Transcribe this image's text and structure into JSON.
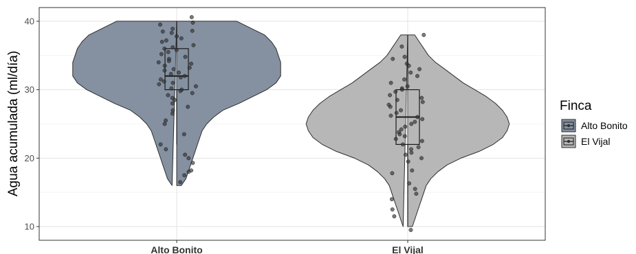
{
  "chart_data": {
    "type": "violin",
    "title": "",
    "xlabel": "",
    "ylabel": "Agua acumulada (ml/día)",
    "ylim": [
      8,
      42
    ],
    "yticks": [
      10,
      20,
      30,
      40
    ],
    "grid": true,
    "legend": {
      "title": "Finca",
      "position": "right"
    },
    "categories": [
      "Alto Bonito",
      "El Vijal"
    ],
    "colors": {
      "Alto Bonito": "#8591a1",
      "El Vijal": "#b7b7b7"
    },
    "series": [
      {
        "name": "Alto Bonito",
        "box": {
          "min": 22,
          "q1": 30,
          "median": 32,
          "q3": 36,
          "max": 40
        },
        "violin": {
          "y": [
            16,
            17,
            18,
            19,
            20,
            21,
            22,
            23,
            24,
            25,
            26,
            27,
            28,
            29,
            30,
            31,
            32,
            33,
            34,
            35,
            36,
            37,
            38,
            39,
            40
          ],
          "halfwidth": [
            0.02,
            0.04,
            0.05,
            0.06,
            0.07,
            0.08,
            0.09,
            0.1,
            0.11,
            0.13,
            0.16,
            0.2,
            0.27,
            0.33,
            0.39,
            0.43,
            0.45,
            0.45,
            0.45,
            0.44,
            0.43,
            0.41,
            0.38,
            0.32,
            0.26
          ]
        },
        "points": [
          40.6,
          39.8,
          39.5,
          38.9,
          38.6,
          38.5,
          38.3,
          37.8,
          37.5,
          37.2,
          37.0,
          36.5,
          36.2,
          36.0,
          35.8,
          35.5,
          35.2,
          34.8,
          34.5,
          34.2,
          34.0,
          33.8,
          33.5,
          33.2,
          33.0,
          32.8,
          32.5,
          32.3,
          32.0,
          31.8,
          31.5,
          31.2,
          31.0,
          30.8,
          30.5,
          30.2,
          30.0,
          29.8,
          29.5,
          29.2,
          28.8,
          28.5,
          28.0,
          27.5,
          27.0,
          26.5,
          25.5,
          25.0,
          23.5,
          22.0,
          21.3,
          20.5,
          20.0,
          19.3,
          18.2,
          18.0,
          17.5,
          16.5
        ]
      },
      {
        "name": "El Vijal",
        "box": {
          "min": 10,
          "q1": 22,
          "median": 26,
          "q3": 30,
          "max": 38
        },
        "violin": {
          "y": [
            10,
            11,
            12,
            13,
            14,
            15,
            16,
            17,
            18,
            19,
            20,
            21,
            22,
            23,
            24,
            25,
            26,
            27,
            28,
            29,
            30,
            31,
            32,
            33,
            34,
            35,
            36,
            37,
            38
          ],
          "halfwidth": [
            0.02,
            0.03,
            0.04,
            0.05,
            0.06,
            0.07,
            0.08,
            0.1,
            0.13,
            0.17,
            0.23,
            0.31,
            0.37,
            0.41,
            0.43,
            0.44,
            0.43,
            0.41,
            0.38,
            0.34,
            0.29,
            0.24,
            0.2,
            0.16,
            0.12,
            0.09,
            0.07,
            0.05,
            0.03
          ]
        },
        "points": [
          38.0,
          36.3,
          34.8,
          34.5,
          33.8,
          33.5,
          33.0,
          32.5,
          32.0,
          31.5,
          31.0,
          30.5,
          30.2,
          30.0,
          29.7,
          29.2,
          28.8,
          28.5,
          28.2,
          27.8,
          27.5,
          27.0,
          26.6,
          26.2,
          26.0,
          25.7,
          25.3,
          25.0,
          24.6,
          24.2,
          23.8,
          23.5,
          23.2,
          22.8,
          22.5,
          22.0,
          21.6,
          21.3,
          20.8,
          20.5,
          20.0,
          19.5,
          18.2,
          17.8,
          16.3,
          15.5,
          14.8,
          14.0,
          12.5,
          11.5,
          9.5
        ]
      }
    ]
  }
}
